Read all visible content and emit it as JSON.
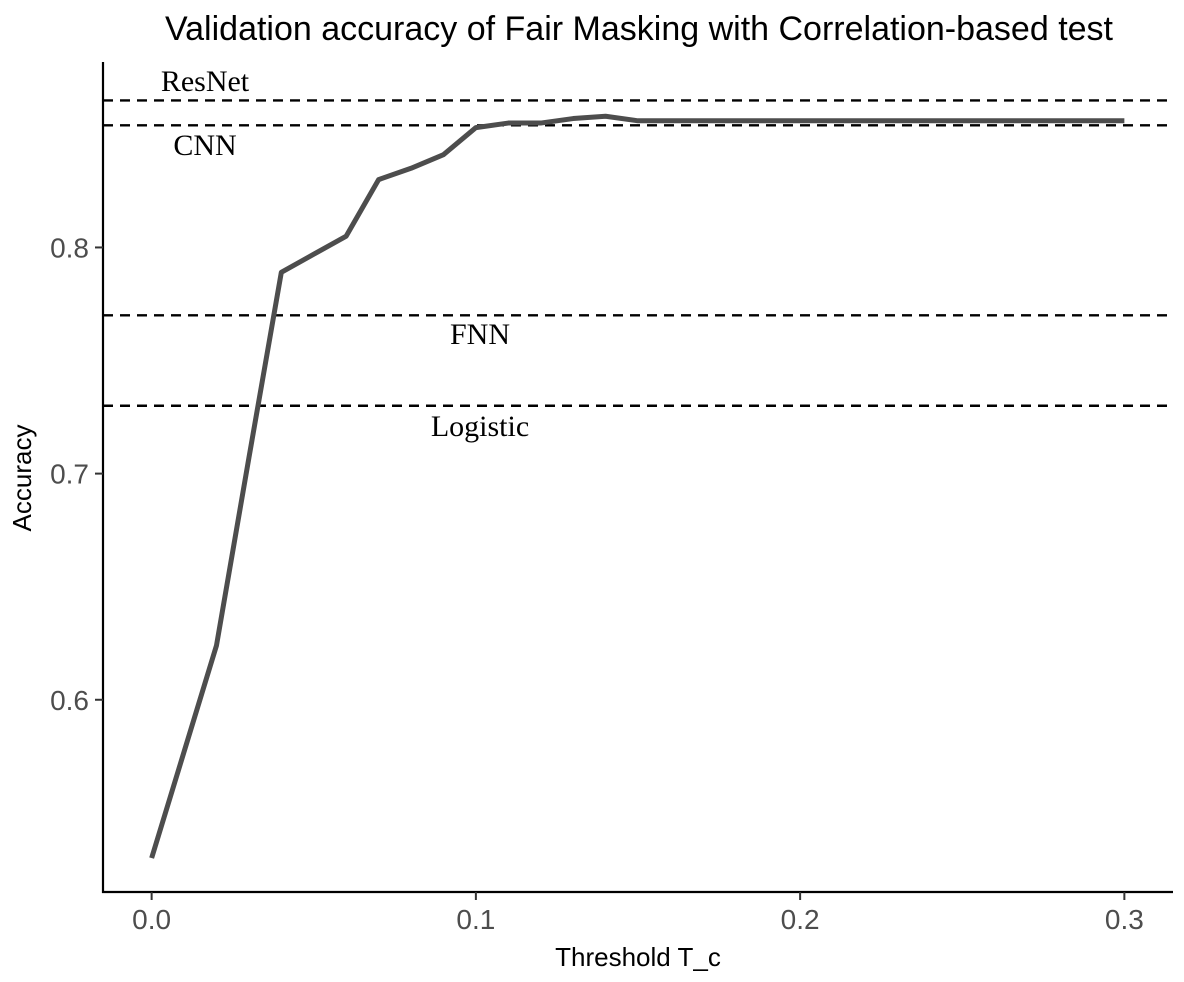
{
  "chart_data": {
    "type": "line",
    "title": "Validation accuracy of Fair Masking with Correlation-based test",
    "xlabel": "Threshold T_c",
    "ylabel": "Accuracy",
    "xlim": [
      -0.015,
      0.315
    ],
    "ylim": [
      0.515,
      0.882
    ],
    "x_ticks": [
      0.0,
      0.1,
      0.2,
      0.3
    ],
    "x_tick_labels": [
      "0.0",
      "0.1",
      "0.2",
      "0.3"
    ],
    "y_ticks": [
      0.6,
      0.7,
      0.8
    ],
    "y_tick_labels": [
      "0.6",
      "0.7",
      "0.8"
    ],
    "grid": false,
    "series": [
      {
        "color": "#4d4d4d",
        "x": [
          0.0,
          0.01,
          0.02,
          0.03,
          0.04,
          0.05,
          0.06,
          0.07,
          0.08,
          0.09,
          0.1,
          0.11,
          0.12,
          0.13,
          0.14,
          0.15,
          0.16,
          0.17,
          0.18,
          0.19,
          0.2,
          0.21,
          0.22,
          0.23,
          0.24,
          0.25,
          0.26,
          0.27,
          0.28,
          0.29,
          0.3
        ],
        "y": [
          0.53,
          0.577,
          0.624,
          0.707,
          0.789,
          0.797,
          0.805,
          0.83,
          0.835,
          0.841,
          0.853,
          0.855,
          0.855,
          0.857,
          0.858,
          0.856,
          0.856,
          0.856,
          0.856,
          0.856,
          0.856,
          0.856,
          0.856,
          0.856,
          0.856,
          0.856,
          0.856,
          0.856,
          0.856,
          0.856,
          0.856
        ]
      }
    ],
    "reference_lines": [
      {
        "label": "ResNet",
        "y": 0.865
      },
      {
        "label": "CNN",
        "y": 0.854
      },
      {
        "label": "FNN",
        "y": 0.77
      },
      {
        "label": "Logistic",
        "y": 0.73
      }
    ]
  }
}
